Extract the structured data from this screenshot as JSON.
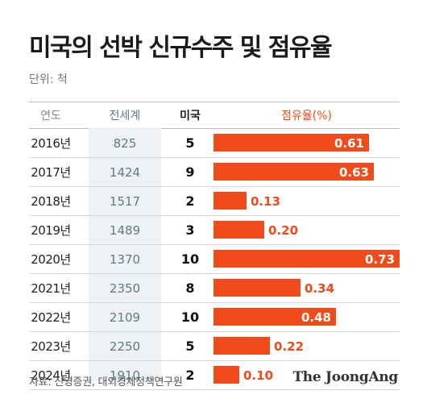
{
  "title": "미국의 선박 신규수주 및 점유율",
  "unit": "단위: 척",
  "source": "자료: 신영증권, 대외경제정책연구원",
  "brand": "The JoongAng",
  "colors": {
    "bar": "#ef4b1b",
    "world_text": "#5d7b8c",
    "world_bg": "#eef2f4"
  },
  "chart_data": {
    "type": "table",
    "columns": [
      "연도",
      "전세계",
      "미국",
      "점유율(%)"
    ],
    "rows": [
      {
        "year": "2016년",
        "world": "825",
        "us": "5",
        "share": 0.61,
        "share_label": "0.61"
      },
      {
        "year": "2017년",
        "world": "1424",
        "us": "9",
        "share": 0.63,
        "share_label": "0.63"
      },
      {
        "year": "2018년",
        "world": "1517",
        "us": "2",
        "share": 0.13,
        "share_label": "0.13"
      },
      {
        "year": "2019년",
        "world": "1489",
        "us": "3",
        "share": 0.2,
        "share_label": "0.20"
      },
      {
        "year": "2020년",
        "world": "1370",
        "us": "10",
        "share": 0.73,
        "share_label": "0.73"
      },
      {
        "year": "2021년",
        "world": "2350",
        "us": "8",
        "share": 0.34,
        "share_label": "0.34"
      },
      {
        "year": "2022년",
        "world": "2109",
        "us": "10",
        "share": 0.48,
        "share_label": "0.48"
      },
      {
        "year": "2023년",
        "world": "2250",
        "us": "5",
        "share": 0.22,
        "share_label": "0.22"
      },
      {
        "year": "2024년",
        "world": "1910",
        "us": "2",
        "share": 0.1,
        "share_label": "0.10"
      }
    ]
  }
}
